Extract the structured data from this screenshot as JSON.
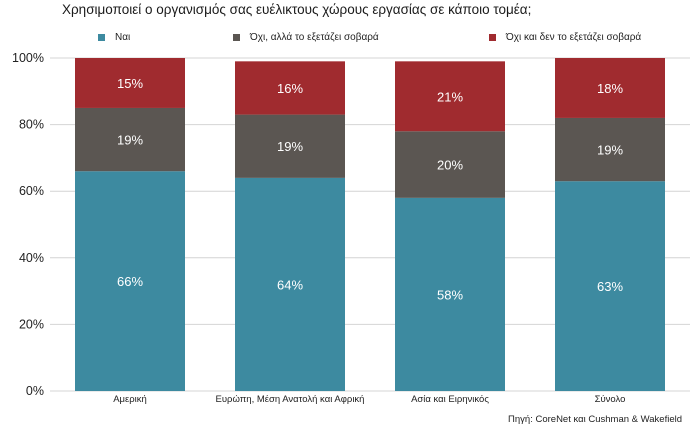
{
  "chart_data": {
    "type": "bar",
    "stacked": true,
    "title": "Χρησιμοποιεί ο οργανισμός σας ευέλικτους χώρους εργασίας σε κάποιο τομέα;",
    "categories": [
      "Αμερική",
      "Ευρώπη, Μέση Ανατολή και Αφρική",
      "Ασία και Ειρηνικός",
      "Σύνολο"
    ],
    "series": [
      {
        "name": "Ναι",
        "values": [
          66,
          64,
          58,
          63
        ],
        "labels": [
          "66%",
          "64%",
          "58%",
          "63%"
        ],
        "color": "#3d8aa0"
      },
      {
        "name": "Όχι, αλλά το εξετάζει σοβαρά",
        "values": [
          19,
          19,
          20,
          19
        ],
        "labels": [
          "19%",
          "19%",
          "20%",
          "19%"
        ],
        "color": "#5b5652"
      },
      {
        "name": "Όχι και δεν το εξετάζει σοβαρά",
        "values": [
          15,
          16,
          21,
          18
        ],
        "labels": [
          "15%",
          "16%",
          "21%",
          "18%"
        ],
        "color": "#a02b2f"
      }
    ],
    "ylim": [
      0,
      100
    ],
    "yticks": [
      0,
      20,
      40,
      60,
      80,
      100
    ],
    "ytick_labels": [
      "0%",
      "20%",
      "40%",
      "60%",
      "80%",
      "100%"
    ],
    "grid": true,
    "legend": "top",
    "source": "Πηγή: CoreNet και Cushman & Wakefield"
  }
}
